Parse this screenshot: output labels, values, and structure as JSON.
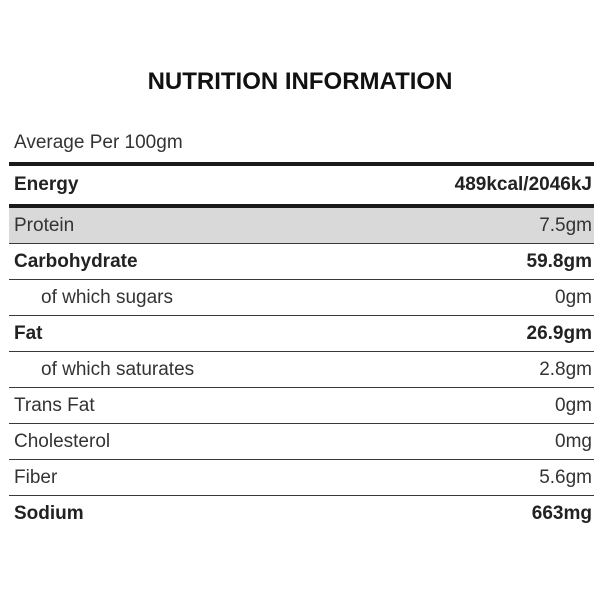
{
  "title": "NUTRITION INFORMATION",
  "subheading": "Average Per 100gm",
  "energy": {
    "label": "Energy",
    "value": "489kcal/2046kJ"
  },
  "rows": [
    {
      "label": "Protein",
      "value": "7.5gm"
    },
    {
      "label": "Carbohydrate",
      "value": "59.8gm"
    },
    {
      "label": "of which sugars",
      "value": "0gm"
    },
    {
      "label": "Fat",
      "value": "26.9gm"
    },
    {
      "label": "of which saturates",
      "value": "2.8gm"
    },
    {
      "label": "Trans Fat",
      "value": "0gm"
    },
    {
      "label": "Cholesterol",
      "value": "0mg"
    },
    {
      "label": "Fiber",
      "value": "5.6gm"
    },
    {
      "label": "Sodium",
      "value": "663mg"
    }
  ],
  "colors": {
    "text": "#333333",
    "rule": "#1a1a1a",
    "highlight_row": "#d9d9d9"
  }
}
